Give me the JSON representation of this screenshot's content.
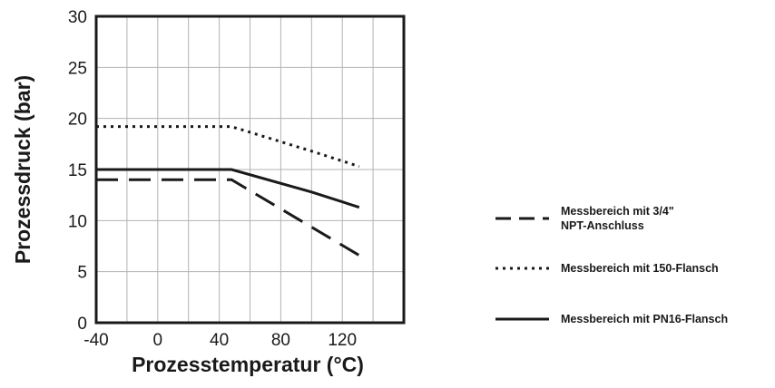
{
  "chart_data": {
    "type": "line",
    "xlabel": "Prozesstemperatur (°C)",
    "ylabel": "Prozessdruck (bar)",
    "xlim": [
      -40,
      160
    ],
    "ylim": [
      0,
      30
    ],
    "xticks": [
      -40,
      0,
      40,
      80,
      120
    ],
    "yticks": [
      0,
      5,
      10,
      15,
      20,
      25,
      30
    ],
    "grid": true,
    "legend_position": "right",
    "series": [
      {
        "name": [
          "Messbereich mit 3/4\"",
          "NPT-Anschluss"
        ],
        "style": "dashed",
        "color": "#1a1a1a",
        "points": [
          [
            -40,
            14
          ],
          [
            48,
            14
          ],
          [
            131,
            6.6
          ]
        ]
      },
      {
        "name": [
          "Messbereich mit 150-Flansch"
        ],
        "style": "dotted",
        "color": "#1a1a1a",
        "points": [
          [
            -40,
            19.2
          ],
          [
            48,
            19.2
          ],
          [
            100,
            16.8
          ],
          [
            131,
            15.3
          ]
        ]
      },
      {
        "name": [
          "Messbereich mit PN16-Flansch"
        ],
        "style": "solid",
        "color": "#1a1a1a",
        "points": [
          [
            -40,
            15
          ],
          [
            48,
            15
          ],
          [
            100,
            12.8
          ],
          [
            131,
            11.3
          ]
        ]
      }
    ]
  }
}
